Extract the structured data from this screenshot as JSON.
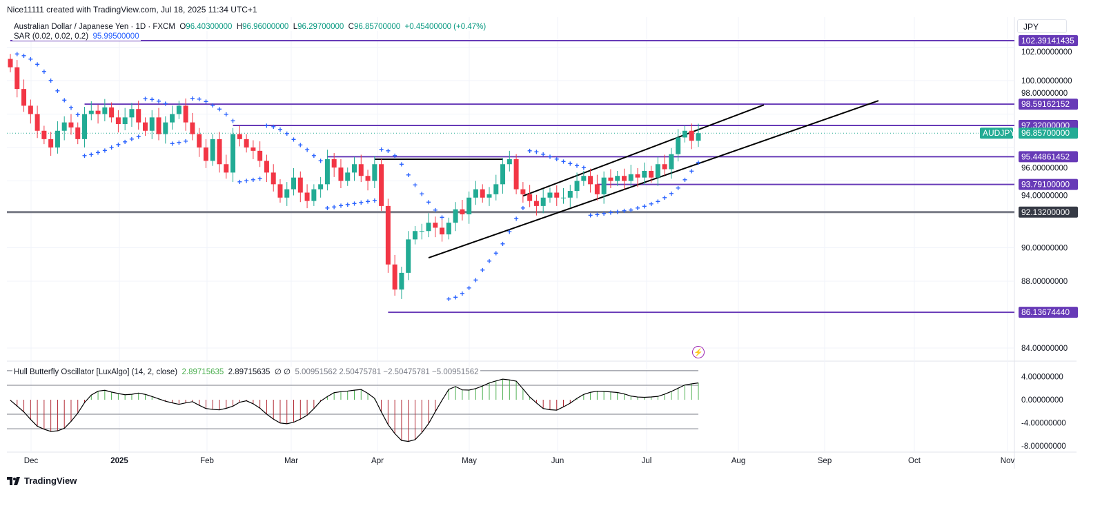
{
  "credit": "Nice11111 created with TradingView.com, Jul 18, 2025 11:34 UTC+1",
  "legend": {
    "symbol": "Australian Dollar / Japanese Yen · 1D · FXCM",
    "o_label": "O",
    "o": "96.40300000",
    "h_label": "H",
    "h": "96.96000000",
    "l_label": "L",
    "l": "96.29700000",
    "c_label": "C",
    "c": "96.85700000",
    "change": "+0.45400000 (+0.47%)",
    "sar_label": "SAR (0.02, 0.02, 0.2)",
    "sar_value": "95.99500000"
  },
  "osc_legend": {
    "label": "Hull Butterfly Oscillator [LuxAlgo] (14, 2, close)",
    "v1": "2.89715635",
    "v2": "2.89715635",
    "v3": "∅ ∅",
    "v4": "5.00951562 2.50475781 −2.50475781 −5.00951562"
  },
  "currency": "JPY",
  "symbol_tag": "AUDJPY",
  "brand": "TradingView",
  "colors": {
    "up": "#22ab94",
    "down": "#f23645",
    "sar": "#2962ff",
    "level": "#673ab7",
    "support": "#787b86",
    "osc_up": "#4caf50",
    "osc_down": "#b22833"
  },
  "chart_data": {
    "type": "candlestick",
    "symbol": "AUDJPY",
    "price_range": [
      83.5,
      103.9
    ],
    "price_ticks": [
      "102.00000000",
      "100.00000000",
      "98.00000000",
      "96.00000000",
      "94.00000000",
      "90.00000000",
      "88.00000000",
      "84.00000000"
    ],
    "price_tick_values": [
      102,
      100,
      98,
      96,
      94,
      90,
      88,
      84
    ],
    "time_ticks": [
      "Dec",
      "2025",
      "Feb",
      "Mar",
      "Apr",
      "May",
      "Jun",
      "Jul",
      "Aug",
      "Sep",
      "Oct",
      "Nov"
    ],
    "closes": [
      100.8,
      99.5,
      98.5,
      98.0,
      97.0,
      96.5,
      96.0,
      97.0,
      97.5,
      97.2,
      96.5,
      98.0,
      98.2,
      98.0,
      98.4,
      97.8,
      97.4,
      97.8,
      98.3,
      97.5,
      97.0,
      97.8,
      96.8,
      97.5,
      98.0,
      98.5,
      97.5,
      96.8,
      96.0,
      95.2,
      96.5,
      95.0,
      94.5,
      96.8,
      96.5,
      96.0,
      95.8,
      95.2,
      94.5,
      93.8,
      93.0,
      93.5,
      94.2,
      93.3,
      92.8,
      93.5,
      93.8,
      95.3,
      94.8,
      94.0,
      94.5,
      95.0,
      94.3,
      94.0,
      95.0,
      92.5,
      89.0,
      87.5,
      88.5,
      90.5,
      91.0,
      91.0,
      91.5,
      91.2,
      90.8,
      91.5,
      92.3,
      92.0,
      93.0,
      93.5,
      93.0,
      93.2,
      93.8,
      95.0,
      95.3,
      93.5,
      93.2,
      92.8,
      92.5,
      93.0,
      93.3,
      93.0,
      93.0,
      93.4,
      94.0,
      94.3,
      93.8,
      93.2,
      94.2,
      94.0,
      94.3,
      94.0,
      94.4,
      94.2,
      94.6,
      94.2,
      95.0,
      94.7,
      95.6,
      96.6,
      97.0,
      96.403,
      96.857
    ],
    "first_open": 101.3,
    "levels": [
      {
        "price": 102.39141435,
        "label": "102.39141435",
        "kind": "resistance"
      },
      {
        "price": 98.59162152,
        "label": "98.59162152",
        "kind": "resistance"
      },
      {
        "price": 97.32,
        "label": "97.32000000",
        "kind": "resistance"
      },
      {
        "price": 95.44861452,
        "label": "95.44861452",
        "kind": "resistance"
      },
      {
        "price": 93.791,
        "label": "93.79100000",
        "kind": "support"
      },
      {
        "price": 92.132,
        "label": "92.13200000",
        "kind": "support-major"
      },
      {
        "price": 86.1367444,
        "label": "86.13674440",
        "kind": "support"
      }
    ],
    "last_price": {
      "price": 96.857,
      "label": "96.85700000"
    },
    "sar_params": [
      0.02,
      0.02,
      0.2
    ],
    "oscillator": {
      "name": "Hull Butterfly Oscillator",
      "range": [
        -9.5,
        6
      ],
      "ticks": [
        "4.00000000",
        "0.00000000",
        "-4.00000000",
        "-8.00000000"
      ],
      "tick_values": [
        4,
        0,
        -4,
        -8
      ],
      "bands": [
        5.00951562,
        2.50475781,
        -2.50475781,
        -5.00951562
      ],
      "values": [
        -0.1,
        -2,
        -4.5,
        -5.5,
        -5.3,
        -3,
        0.5,
        1.8,
        1.2,
        0.8,
        1.2,
        0.5,
        -0.3,
        -0.8,
        -0.3,
        -1.5,
        -1.8,
        -1.3,
        0,
        -1,
        -3,
        -4.3,
        -3.8,
        -2.5,
        0,
        1.3,
        1.5,
        1.8,
        0.5,
        -4,
        -7,
        -7.3,
        -5,
        -1,
        2.6,
        1.5,
        2.0,
        3,
        3.6,
        3.2,
        0.5,
        -1.5,
        -1.9,
        -0.8,
        0.8,
        1.5,
        1.4,
        1.2,
        0.5,
        0.4,
        0.6,
        1.5,
        2.6,
        2.9
      ]
    }
  }
}
